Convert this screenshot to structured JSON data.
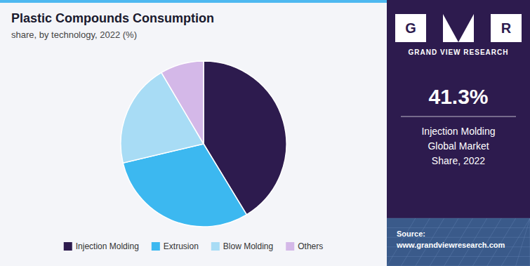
{
  "chart_data": {
    "type": "pie",
    "title": "Plastic Compounds Consumption",
    "subtitle": "share, by technology, 2022 (%)",
    "categories": [
      "Injection Molding",
      "Extrusion",
      "Blow Molding",
      "Others"
    ],
    "values": [
      41.3,
      30.0,
      20.2,
      8.5
    ],
    "colors": [
      "#2d1b4e",
      "#3cb8f0",
      "#a8dcf5",
      "#d4b8e8"
    ],
    "legend": "bottom",
    "annotations": [
      "G",
      "R",
      "GRAND VIEW RESEARCH",
      "41.3%",
      "Injection Molding\nGlobal Market\nShare, 2022",
      "Source:\nwww.grandviewresearch.com"
    ]
  }
}
